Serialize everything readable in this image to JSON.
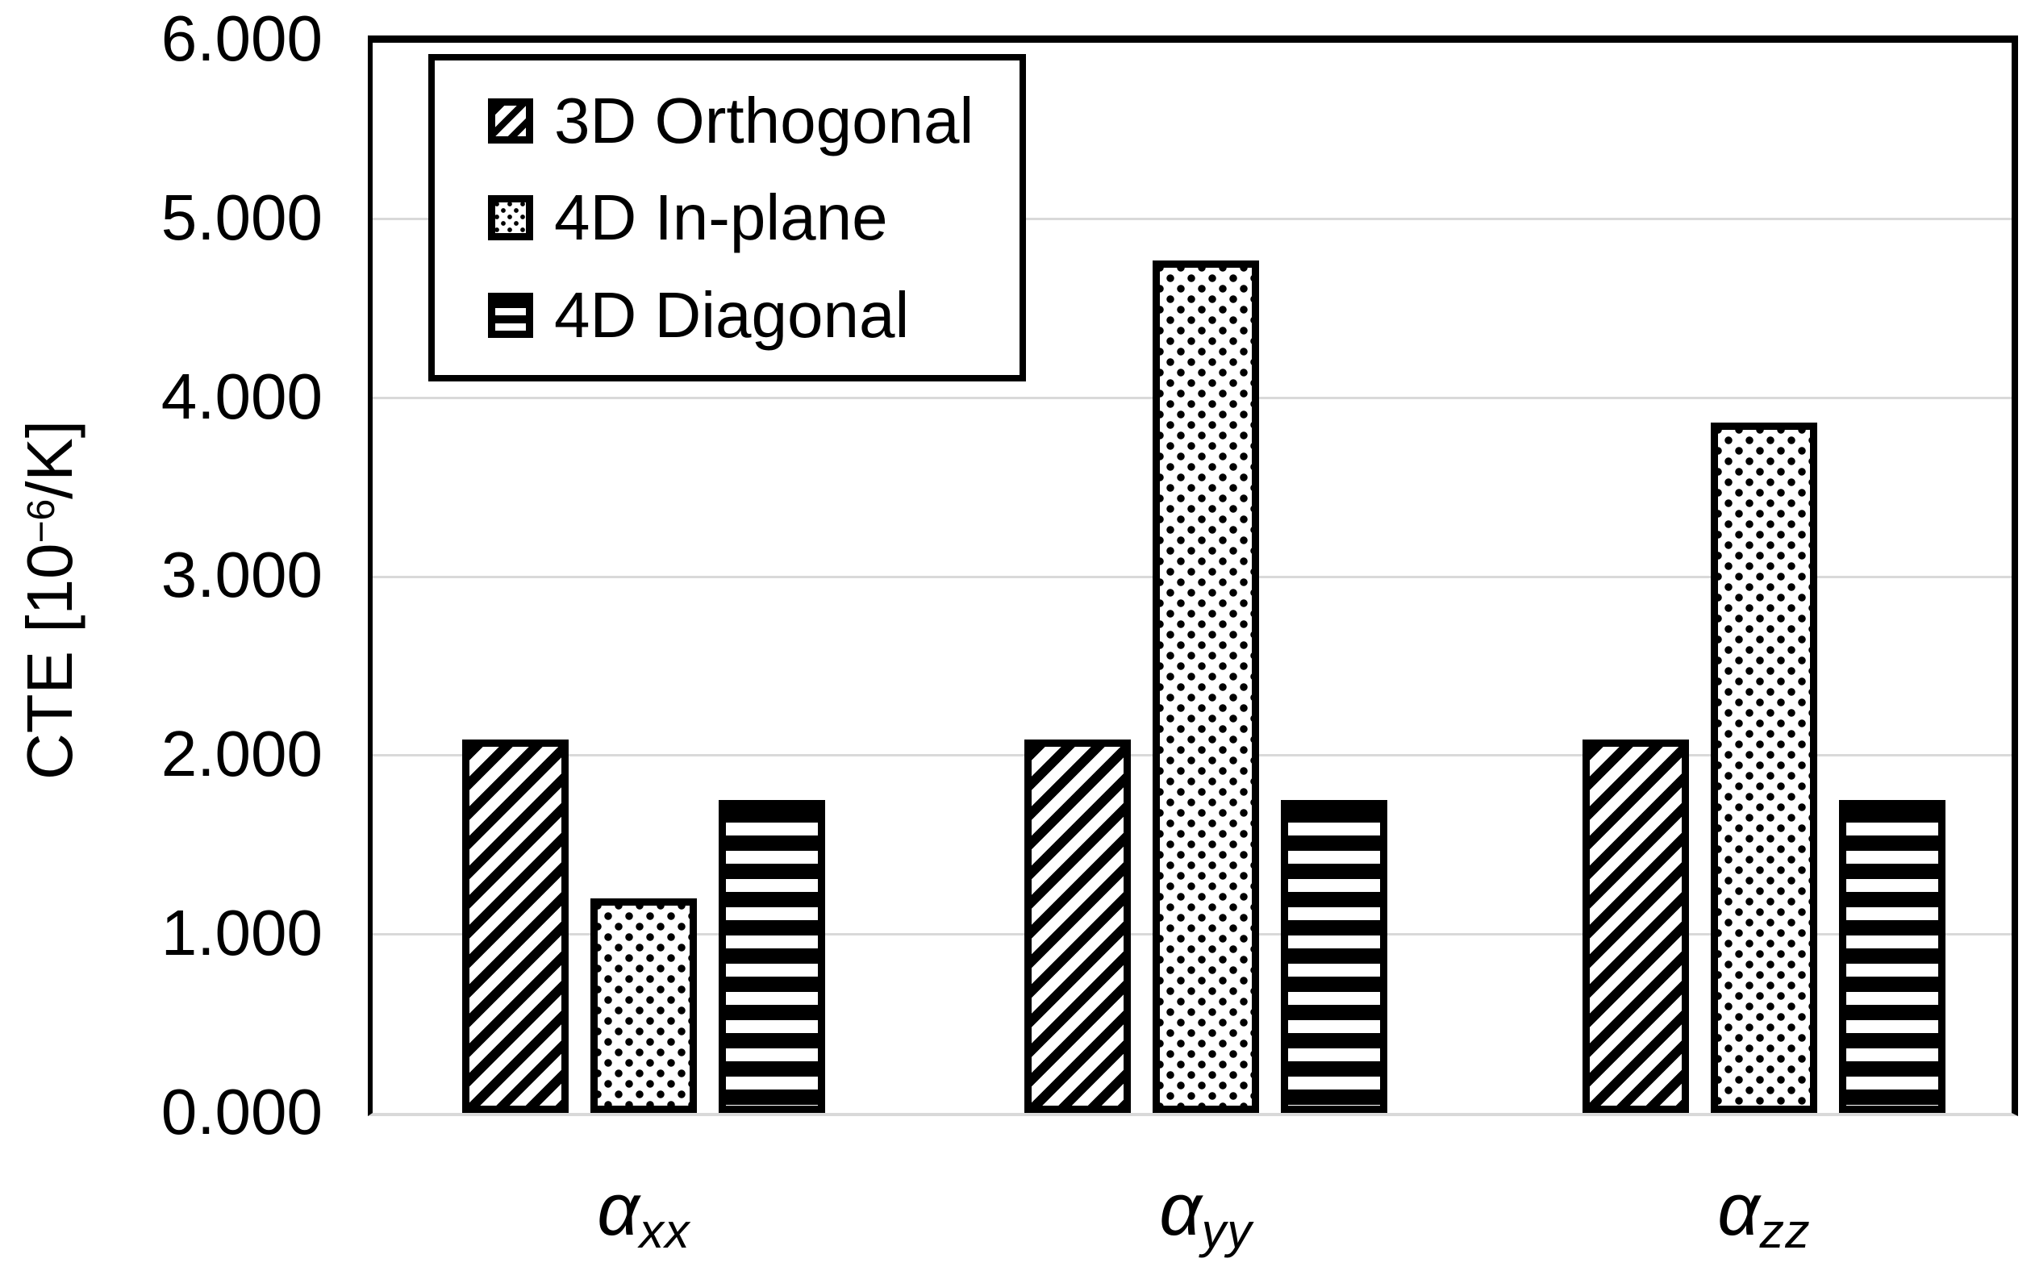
{
  "y_axis": {
    "title_prefix": "CTE [10",
    "title_superscript": "−6",
    "title_suffix": "/K]",
    "tick_labels": [
      "6.000",
      "5.000",
      "4.000",
      "3.000",
      "2.000",
      "1.000",
      "0.000"
    ],
    "min": 0,
    "max": 6
  },
  "x_axis": {
    "categories": [
      {
        "symbol": "α",
        "subscript": "xx"
      },
      {
        "symbol": "α",
        "subscript": "yy"
      },
      {
        "symbol": "α",
        "subscript": "zz"
      }
    ]
  },
  "legend": {
    "items": [
      {
        "label": "3D Orthogonal",
        "pattern": "diagonal-stripes"
      },
      {
        "label": "4D In-plane",
        "pattern": "dots"
      },
      {
        "label": "4D Diagonal",
        "pattern": "horizontal-stripes"
      }
    ]
  },
  "chart_data": {
    "type": "bar",
    "categories": [
      "α_xx",
      "α_yy",
      "α_zz"
    ],
    "series": [
      {
        "name": "3D Orthogonal",
        "pattern": "diagonal-stripes",
        "values": [
          2.09,
          2.09,
          2.09
        ]
      },
      {
        "name": "4D In-plane",
        "pattern": "dots",
        "values": [
          1.2,
          4.77,
          3.86
        ]
      },
      {
        "name": "4D Diagonal",
        "pattern": "horizontal-stripes",
        "values": [
          1.75,
          1.75,
          1.75
        ]
      }
    ],
    "title": "",
    "xlabel": "",
    "ylabel": "CTE [10⁻⁶/K]",
    "ylim": [
      0,
      6
    ],
    "ytick_interval": 1.0,
    "ytick_format": "#.000",
    "grid": "horizontal",
    "gridline_color": "#d9d9d9",
    "legend_position": "top-left-inside",
    "bar_fill": "black-and-white patterns",
    "colors": {
      "foreground": "#000000",
      "background": "#ffffff",
      "gridline": "#d9d9d9"
    }
  }
}
